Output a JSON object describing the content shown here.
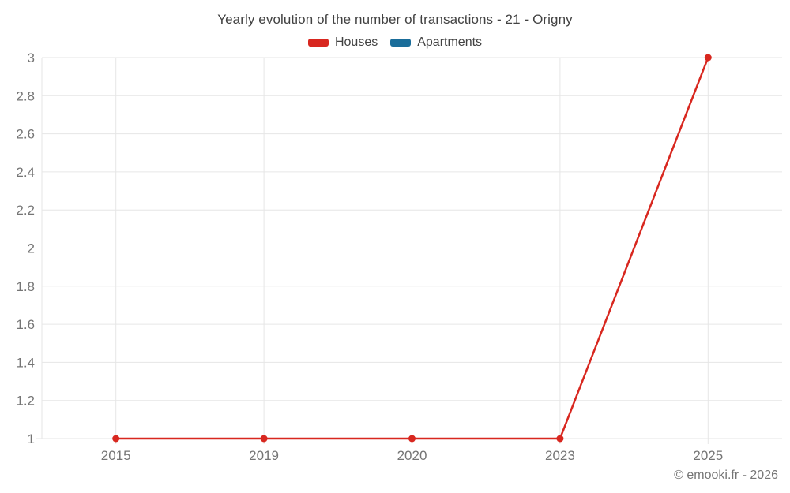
{
  "header": {
    "title": "Yearly evolution of the number of transactions - 21 - Origny",
    "legend": [
      {
        "label": "Houses",
        "color": "#d8271f"
      },
      {
        "label": "Apartments",
        "color": "#1a6d9a"
      }
    ]
  },
  "footer": {
    "copyright": "© emooki.fr - 2026"
  },
  "chart_data": {
    "type": "line",
    "title": "Yearly evolution of the number of transactions - 21 - Origny",
    "categories": [
      "2015",
      "2019",
      "2020",
      "2023",
      "2025"
    ],
    "series": [
      {
        "name": "Houses",
        "color": "#d8271f",
        "values": [
          1,
          1,
          1,
          1,
          3
        ]
      },
      {
        "name": "Apartments",
        "color": "#1a6d9a",
        "values": []
      }
    ],
    "xlabel": "",
    "ylabel": "",
    "ylim": [
      1,
      3
    ],
    "y_ticks": [
      {
        "value": 1,
        "label": "1"
      },
      {
        "value": 1.2,
        "label": "1.2"
      },
      {
        "value": 1.4,
        "label": "1.4"
      },
      {
        "value": 1.6,
        "label": "1.6"
      },
      {
        "value": 1.8,
        "label": "1.8"
      },
      {
        "value": 2,
        "label": "2"
      },
      {
        "value": 2.2,
        "label": "2.2"
      },
      {
        "value": 2.4,
        "label": "2.4"
      },
      {
        "value": 2.6,
        "label": "2.6"
      },
      {
        "value": 2.8,
        "label": "2.8"
      },
      {
        "value": 3,
        "label": "3"
      }
    ],
    "grid": true,
    "legend_position": "top"
  },
  "style": {
    "background": "#ffffff",
    "grid_color": "#e6e6e6",
    "axis_label_color": "#757575",
    "title_color": "#424242",
    "legend_label_color": "#424242",
    "copyright_color": "#757575"
  }
}
